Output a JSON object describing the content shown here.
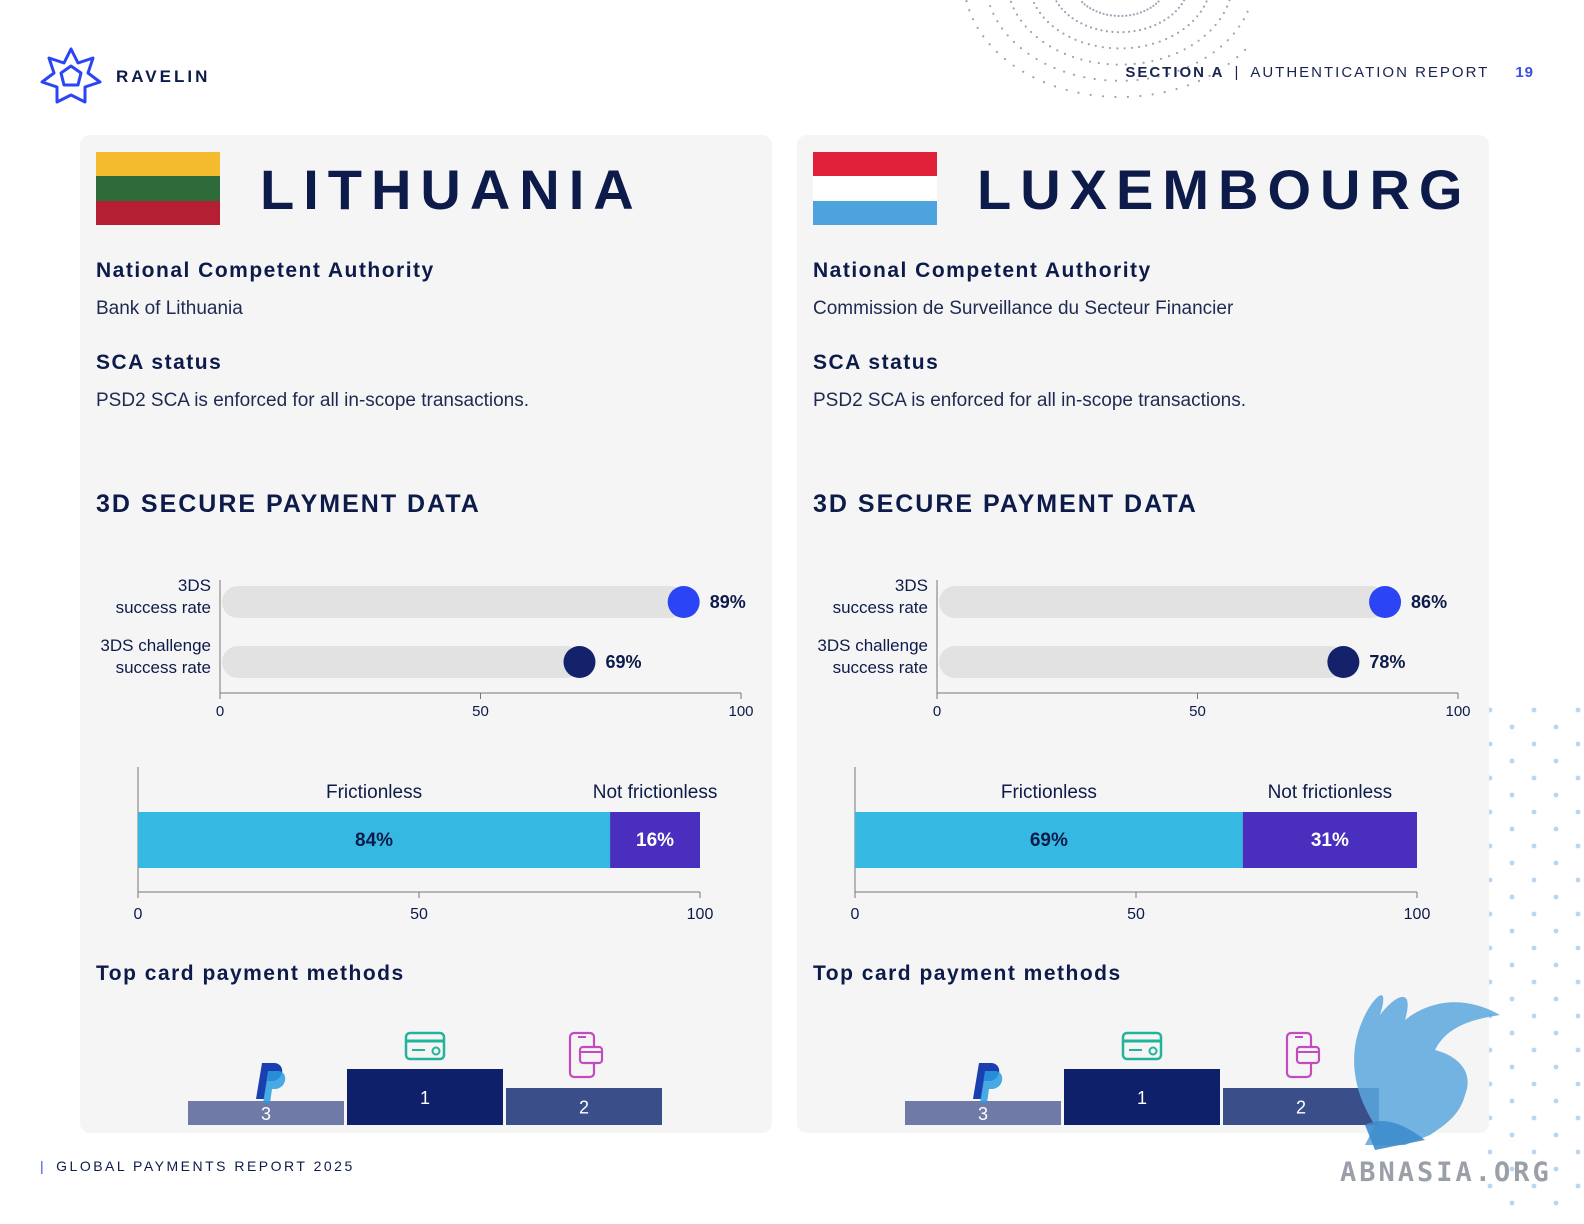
{
  "header": {
    "brand": "RAVELIN",
    "section": "SECTION A",
    "divider": "|",
    "report": "AUTHENTICATION REPORT",
    "page": "19"
  },
  "cards": [
    {
      "country": "LITHUANIA",
      "flag_colors": [
        "#f4bb2f",
        "#2f6b3a",
        "#b51f33"
      ],
      "nca_label": "National Competent Authority",
      "nca_value": "Bank of Lithuania",
      "sca_label": "SCA status",
      "sca_value": "PSD2 SCA is enforced for all in-scope transactions.",
      "section_title": "3D SECURE PAYMENT DATA",
      "top_methods_title": "Top card payment methods",
      "podium": [
        {
          "rank": "3",
          "icon": "paypal-icon"
        },
        {
          "rank": "1",
          "icon": "credit-card-icon"
        },
        {
          "rank": "2",
          "icon": "mobile-wallet-icon"
        }
      ]
    },
    {
      "country": "LUXEMBOURG",
      "flag_colors": [
        "#e1203a",
        "#ffffff",
        "#4da3de"
      ],
      "nca_label": "National Competent Authority",
      "nca_value": "Commission de Surveillance du Secteur Financier",
      "sca_label": "SCA status",
      "sca_value": "PSD2 SCA is enforced for all in-scope transactions.",
      "section_title": "3D SECURE PAYMENT DATA",
      "top_methods_title": "Top card payment methods",
      "podium": [
        {
          "rank": "3",
          "icon": "paypal-icon"
        },
        {
          "rank": "1",
          "icon": "credit-card-icon"
        },
        {
          "rank": "2",
          "icon": "mobile-wallet-icon"
        }
      ]
    }
  ],
  "chart_data": [
    {
      "type": "bar",
      "orientation": "horizontal",
      "country": "LITHUANIA",
      "categories": [
        [
          "3DS",
          "success rate"
        ],
        [
          "3DS challenge",
          "success rate"
        ]
      ],
      "values": [
        89,
        69
      ],
      "value_labels": [
        "89%",
        "69%"
      ],
      "xlim": [
        0,
        100
      ],
      "ticks": [
        "0",
        "50",
        "100"
      ],
      "colors": [
        "#2b45f5",
        "#13226b"
      ]
    },
    {
      "type": "bar",
      "orientation": "horizontal-stacked",
      "country": "LITHUANIA",
      "categories": [
        "Frictionless",
        "Not frictionless"
      ],
      "values": [
        84,
        16
      ],
      "value_labels": [
        "84%",
        "16%"
      ],
      "xlim": [
        0,
        100
      ],
      "ticks": [
        "0",
        "50",
        "100"
      ],
      "colors": [
        "#35b9e2",
        "#4a2fbf"
      ]
    },
    {
      "type": "bar",
      "orientation": "horizontal",
      "country": "LUXEMBOURG",
      "categories": [
        [
          "3DS",
          "success rate"
        ],
        [
          "3DS challenge",
          "success rate"
        ]
      ],
      "values": [
        86,
        78
      ],
      "value_labels": [
        "86%",
        "78%"
      ],
      "xlim": [
        0,
        100
      ],
      "ticks": [
        "0",
        "50",
        "100"
      ],
      "colors": [
        "#2b45f5",
        "#13226b"
      ]
    },
    {
      "type": "bar",
      "orientation": "horizontal-stacked",
      "country": "LUXEMBOURG",
      "categories": [
        "Frictionless",
        "Not frictionless"
      ],
      "values": [
        69,
        31
      ],
      "value_labels": [
        "69%",
        "31%"
      ],
      "xlim": [
        0,
        100
      ],
      "ticks": [
        "0",
        "50",
        "100"
      ],
      "colors": [
        "#35b9e2",
        "#4a2fbf"
      ]
    }
  ],
  "footer": {
    "bar": "|",
    "text": "GLOBAL PAYMENTS REPORT 2025"
  },
  "watermark": "ABNASIA.ORG",
  "colors": {
    "navy": "#0d1b4a",
    "accent_blue": "#3b4fe0",
    "podium_1": "#0f206b",
    "podium_2": "#3a4f8a",
    "podium_3": "#6f7aa6"
  }
}
